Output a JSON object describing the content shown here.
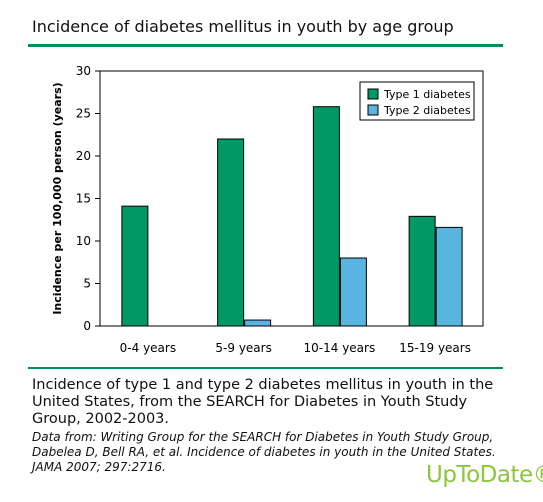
{
  "header": {
    "title": "Incidence of diabetes mellitus in youth by age group"
  },
  "chart_data": {
    "type": "bar",
    "categories": [
      "0-4 years",
      "5-9 years",
      "10-14 years",
      "15-19 years"
    ],
    "series": [
      {
        "name": "Type 1 diabetes",
        "values": [
          14.1,
          22.0,
          25.8,
          12.9
        ],
        "color": "#009966"
      },
      {
        "name": "Type 2 diabetes",
        "values": [
          0,
          0.7,
          8.0,
          11.6
        ],
        "color": "#5ab4e0"
      }
    ],
    "ylabel": "Incidence per 100,000 person (years)",
    "ylim": [
      0,
      30
    ],
    "yticks": [
      0,
      5,
      10,
      15,
      20,
      25,
      30
    ],
    "grid": false,
    "legend_position": "top-right"
  },
  "caption": "Incidence of type 1 and type 2 diabetes mellitus in youth in the United States, from the SEARCH for Diabetes in Youth Study Group, 2002-2003.",
  "source": "Data from: Writing Group for the SEARCH for Diabetes in Youth Study Group, Dabelea D, Bell RA, et al. Incidence of diabetes in youth in the United States. JAMA 2007; 297:2716.",
  "brand": "UpToDate®"
}
